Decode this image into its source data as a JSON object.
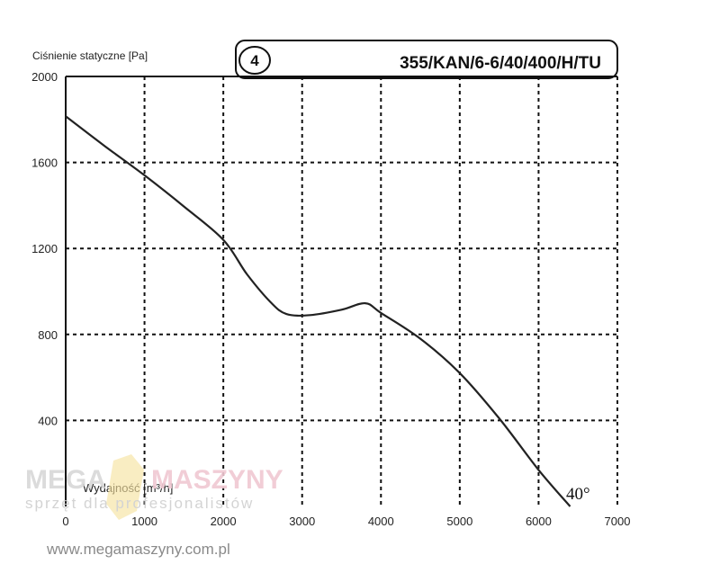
{
  "chart_data": {
    "type": "line",
    "ylabel": "Ciśnienie statyczne [Pa]",
    "xlabel": "Wydajność [m³/h]",
    "curve_number": "4",
    "model": "355/KAN/6-6/40/400/H/TU",
    "angle_label": "40°",
    "xlim": [
      0,
      7000
    ],
    "ylim": [
      0,
      2000
    ],
    "x_ticks": [
      "0",
      "1000",
      "2000",
      "3000",
      "4000",
      "5000",
      "6000",
      "7000"
    ],
    "y_ticks": [
      "2000",
      "1600",
      "1200",
      "800",
      "400"
    ],
    "grid": true,
    "series": [
      {
        "x": [
          0,
          500,
          1000,
          1500,
          2000,
          2300,
          2600,
          2800,
          3100,
          3500,
          3800,
          4000,
          4500,
          5000,
          5500,
          6000,
          6400
        ],
        "y": [
          1815,
          1675,
          1540,
          1395,
          1240,
          1080,
          950,
          895,
          890,
          915,
          945,
          900,
          780,
          620,
          410,
          170,
          0
        ]
      }
    ]
  },
  "watermark": {
    "brand_left": "MEGA",
    "brand_right": "MASZYNY",
    "tagline": "sprzęt dla profesjonalistów",
    "url": "www.megamaszyny.com.pl"
  }
}
